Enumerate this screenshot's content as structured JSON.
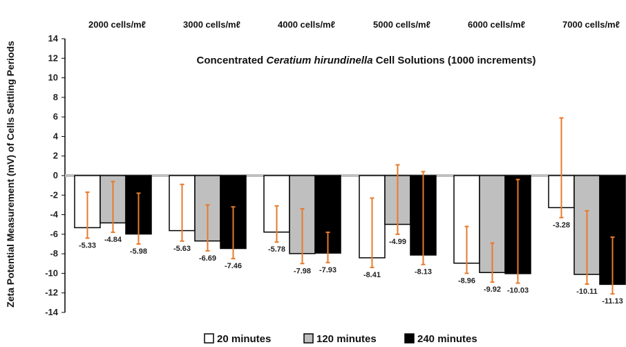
{
  "chart_data": {
    "type": "bar",
    "title_parts": [
      "Concentrated ",
      "Ceratium hirundinella",
      " Cell Solutions (1000 increments)"
    ],
    "ylabel": "Zeta Potential Measurement (mV) of Cells Settling Periods",
    "xlabel": "",
    "ylim": [
      -14,
      14
    ],
    "yticks": [
      "14",
      "12",
      "10",
      "8",
      "6",
      "4",
      "2",
      "0",
      "-2",
      "-4",
      "-6",
      "-8",
      "-10",
      "-12",
      "-14"
    ],
    "categories": [
      "2000 cells/mℓ",
      "3000 cells/mℓ",
      "4000 cells/mℓ",
      "5000 cells/mℓ",
      "6000 cells/mℓ",
      "7000 cells/mℓ"
    ],
    "legend_position": "bottom",
    "grid": false,
    "series": [
      {
        "name": "20 minutes",
        "color": "#ffffff",
        "values": [
          -5.33,
          -5.63,
          -5.78,
          -8.41,
          -8.96,
          -3.28
        ],
        "labels": [
          "-5.33",
          "-5.63",
          "-5.78",
          "-8.41",
          "-8.96",
          "-3.28"
        ],
        "err_low": [
          -6.4,
          -6.7,
          -6.8,
          -9.4,
          -10.0,
          -4.3
        ],
        "err_high": [
          -1.7,
          -0.9,
          -3.1,
          -2.3,
          -5.2,
          5.9
        ]
      },
      {
        "name": "120 minutes",
        "color": "#bfbfbf",
        "values": [
          -4.84,
          -6.69,
          -7.98,
          -4.99,
          -9.92,
          -10.11
        ],
        "labels": [
          "-4.84",
          "-6.69",
          "-7.98",
          "-4.99",
          "-9.92",
          "-10.11"
        ],
        "err_low": [
          -5.8,
          -7.7,
          -9.0,
          -6.0,
          -10.9,
          -11.1
        ],
        "err_high": [
          -0.6,
          -3.0,
          -3.4,
          1.1,
          -6.9,
          -3.6
        ]
      },
      {
        "name": "240 minutes",
        "color": "#000000",
        "values": [
          -5.98,
          -7.46,
          -7.93,
          -8.13,
          -10.03,
          -11.13
        ],
        "labels": [
          "-5.98",
          "-7.46",
          "-7.93",
          "-8.13",
          "-10.03",
          "-11.13"
        ],
        "err_low": [
          -7.0,
          -8.5,
          -8.9,
          -9.1,
          -11.0,
          -12.1
        ],
        "err_high": [
          -1.8,
          -3.2,
          -5.8,
          0.4,
          -0.4,
          -6.3
        ]
      }
    ],
    "error_bar_color": "#e87a2a"
  }
}
